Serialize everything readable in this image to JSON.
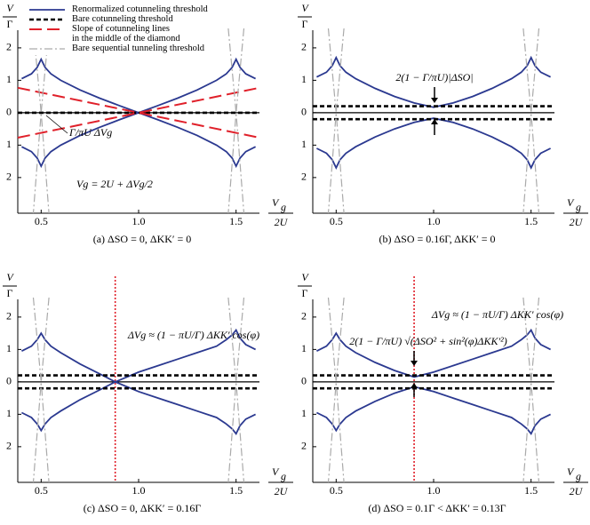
{
  "chart_data": [
    {
      "type": "line",
      "caption": "(a) ΔSO = 0, ΔKK′ = 0",
      "xlabel": {
        "num": "V",
        "sub": "g",
        "den": "2U"
      },
      "ylabel": {
        "num": "V",
        "den": "Γ"
      },
      "xlim": [
        0.38,
        1.62
      ],
      "ylim": [
        -3.1,
        2.6
      ],
      "xticks": [
        0.5,
        {
          "value": 1.0,
          "label": "1.0"
        },
        1.5
      ],
      "yticks": [
        2,
        1,
        0,
        {
          "value": -1,
          "label": "1"
        },
        {
          "value": -2,
          "label": "2"
        }
      ],
      "legend": "upper left",
      "x": [
        0.4,
        0.45,
        0.48,
        0.5,
        0.52,
        0.55,
        0.6,
        0.7,
        0.8,
        0.9,
        1.0,
        1.1,
        1.2,
        1.3,
        1.4,
        1.45,
        1.48,
        1.5,
        1.52,
        1.55,
        1.6
      ],
      "series": [
        {
          "name": "Renormalized cotunneling threshold",
          "color": "#2b3990",
          "style": "solid",
          "values": [
            1.05,
            1.2,
            1.4,
            1.65,
            1.4,
            1.2,
            1.0,
            0.7,
            0.45,
            0.22,
            0,
            0.22,
            0.45,
            0.7,
            1.0,
            1.2,
            1.4,
            1.65,
            1.4,
            1.2,
            1.05
          ]
        },
        {
          "color": "#2b3990",
          "style": "solid",
          "values": [
            -1.05,
            -1.2,
            -1.4,
            -1.65,
            -1.4,
            -1.2,
            -1.0,
            -0.7,
            -0.45,
            -0.22,
            0,
            -0.22,
            -0.45,
            -0.7,
            -1.0,
            -1.2,
            -1.4,
            -1.65,
            -1.4,
            -1.2,
            -1.05
          ]
        },
        {
          "name": "Bare cotunneling threshold",
          "color": "#000000",
          "style": "dashed",
          "x": [
            0.38,
            1.62
          ],
          "values": [
            0,
            0
          ]
        },
        {
          "name": "Slope of cotunneling lines\nin the middle of the diamond",
          "color": "#e0202a",
          "style": "longdash",
          "x": [
            0.38,
            1.62
          ],
          "values": [
            0.77,
            -0.77
          ]
        },
        {
          "color": "#e0202a",
          "style": "longdash",
          "x": [
            0.38,
            1.62
          ],
          "values": [
            -0.77,
            0.77
          ]
        },
        {
          "name": "Bare sequential tunneling threshold",
          "color": "#aaaaaa",
          "style": "dashdot",
          "x": [
            0.46,
            0.5,
            0.54
          ],
          "values": [
            2.6,
            0,
            -3.1
          ]
        },
        {
          "color": "#aaaaaa",
          "style": "dashdot",
          "x": [
            0.54,
            0.5,
            0.46
          ],
          "values": [
            2.6,
            0,
            -3.1
          ]
        },
        {
          "color": "#aaaaaa",
          "style": "dashdot",
          "x": [
            1.46,
            1.5,
            1.54
          ],
          "values": [
            2.6,
            0,
            -3.1
          ]
        },
        {
          "color": "#aaaaaa",
          "style": "dashdot",
          "x": [
            1.54,
            1.5,
            1.46
          ],
          "values": [
            2.6,
            0,
            -3.1
          ]
        }
      ],
      "annotations": [
        "Γ/πU ΔVg",
        "Vg = 2U + ΔVg/2"
      ]
    },
    {
      "type": "line",
      "caption": "(b) ΔSO = 0.16Γ, ΔKK′ = 0",
      "xlabel": {
        "num": "V",
        "sub": "g",
        "den": "2U"
      },
      "ylabel": {
        "num": "V",
        "den": "Γ"
      },
      "xlim": [
        0.38,
        1.62
      ],
      "ylim": [
        -3.1,
        2.6
      ],
      "xticks": [
        0.5,
        {
          "value": 1.0,
          "label": "1.0"
        },
        1.5
      ],
      "yticks": [
        2,
        1,
        0,
        {
          "value": -1,
          "label": "1"
        },
        {
          "value": -2,
          "label": "2"
        }
      ],
      "x": [
        0.4,
        0.45,
        0.48,
        0.5,
        0.52,
        0.55,
        0.6,
        0.7,
        0.8,
        0.9,
        1.0,
        1.1,
        1.2,
        1.3,
        1.4,
        1.45,
        1.48,
        1.5,
        1.52,
        1.55,
        1.6
      ],
      "series": [
        {
          "color": "#2b3990",
          "style": "solid",
          "values": [
            1.1,
            1.25,
            1.45,
            1.7,
            1.45,
            1.25,
            1.05,
            0.75,
            0.5,
            0.3,
            0.17,
            0.3,
            0.5,
            0.75,
            1.05,
            1.25,
            1.45,
            1.7,
            1.45,
            1.25,
            1.1
          ]
        },
        {
          "color": "#2b3990",
          "style": "solid",
          "values": [
            -1.1,
            -1.25,
            -1.45,
            -1.7,
            -1.45,
            -1.25,
            -1.05,
            -0.75,
            -0.5,
            -0.3,
            -0.17,
            -0.3,
            -0.5,
            -0.75,
            -1.05,
            -1.25,
            -1.45,
            -1.7,
            -1.45,
            -1.25,
            -1.1
          ]
        },
        {
          "color": "#000000",
          "style": "dashed",
          "x": [
            0.38,
            1.62
          ],
          "values": [
            0.2,
            0.2
          ]
        },
        {
          "color": "#000000",
          "style": "dashed",
          "x": [
            0.38,
            1.62
          ],
          "values": [
            -0.2,
            -0.2
          ]
        },
        {
          "color": "#aaaaaa",
          "style": "dashdot",
          "x": [
            0.46,
            0.5,
            0.54
          ],
          "values": [
            2.6,
            0,
            -3.1
          ]
        },
        {
          "color": "#aaaaaa",
          "style": "dashdot",
          "x": [
            0.54,
            0.5,
            0.46
          ],
          "values": [
            2.6,
            0,
            -3.1
          ]
        },
        {
          "color": "#aaaaaa",
          "style": "dashdot",
          "x": [
            1.46,
            1.5,
            1.54
          ],
          "values": [
            2.6,
            0,
            -3.1
          ]
        },
        {
          "color": "#aaaaaa",
          "style": "dashdot",
          "x": [
            1.54,
            1.5,
            1.46
          ],
          "values": [
            2.6,
            0,
            -3.1
          ]
        }
      ],
      "annotations": [
        "2(1 − Γ/πU)|ΔSO|"
      ]
    },
    {
      "type": "line",
      "caption": "(c) ΔSO = 0, ΔKK′ = 0.16Γ",
      "xlabel": {
        "num": "V",
        "sub": "g",
        "den": "2U"
      },
      "ylabel": {
        "num": "V",
        "den": "Γ"
      },
      "xlim": [
        0.38,
        1.62
      ],
      "ylim": [
        -3.1,
        2.6
      ],
      "xticks": [
        0.5,
        {
          "value": 1.0,
          "label": "1.0"
        },
        1.5
      ],
      "yticks": [
        2,
        1,
        0,
        {
          "value": -1,
          "label": "1"
        },
        {
          "value": -2,
          "label": "2"
        }
      ],
      "vline": {
        "x": 0.88,
        "color": "#e0202a"
      },
      "x": [
        0.4,
        0.45,
        0.48,
        0.5,
        0.52,
        0.55,
        0.6,
        0.7,
        0.8,
        0.88,
        1.0,
        1.1,
        1.2,
        1.3,
        1.4,
        1.45,
        1.48,
        1.5,
        1.52,
        1.55,
        1.6
      ],
      "series": [
        {
          "color": "#2b3990",
          "style": "solid",
          "values": [
            0.95,
            1.1,
            1.3,
            1.5,
            1.3,
            1.1,
            0.9,
            0.55,
            0.25,
            0,
            0.3,
            0.5,
            0.7,
            0.9,
            1.1,
            1.3,
            1.45,
            1.6,
            1.35,
            1.15,
            1.0
          ]
        },
        {
          "color": "#2b3990",
          "style": "solid",
          "values": [
            -0.95,
            -1.1,
            -1.3,
            -1.5,
            -1.3,
            -1.1,
            -0.9,
            -0.55,
            -0.25,
            0,
            -0.3,
            -0.5,
            -0.7,
            -0.9,
            -1.1,
            -1.3,
            -1.45,
            -1.6,
            -1.35,
            -1.15,
            -1.0
          ]
        },
        {
          "color": "#000000",
          "style": "dashed",
          "x": [
            0.38,
            1.62
          ],
          "values": [
            0.2,
            0.2
          ]
        },
        {
          "color": "#000000",
          "style": "dashed",
          "x": [
            0.38,
            1.62
          ],
          "values": [
            -0.2,
            -0.2
          ]
        },
        {
          "color": "#aaaaaa",
          "style": "dashdot",
          "x": [
            0.46,
            0.5,
            0.54
          ],
          "values": [
            2.6,
            0,
            -3.1
          ]
        },
        {
          "color": "#aaaaaa",
          "style": "dashdot",
          "x": [
            0.54,
            0.5,
            0.46
          ],
          "values": [
            2.6,
            0,
            -3.1
          ]
        },
        {
          "color": "#aaaaaa",
          "style": "dashdot",
          "x": [
            1.46,
            1.5,
            1.54
          ],
          "values": [
            2.6,
            0,
            -3.1
          ]
        },
        {
          "color": "#aaaaaa",
          "style": "dashdot",
          "x": [
            1.54,
            1.5,
            1.46
          ],
          "values": [
            2.6,
            0,
            -3.1
          ]
        }
      ],
      "annotations": [
        "ΔVg ≈ (1 − πU/Γ) ΔKK′ cos(φ)"
      ]
    },
    {
      "type": "line",
      "caption": "(d) ΔSO = 0.1Γ < ΔKK′ = 0.13Γ",
      "xlabel": {
        "num": "V",
        "sub": "g",
        "den": "2U"
      },
      "ylabel": {
        "num": "V",
        "den": "Γ"
      },
      "xlim": [
        0.38,
        1.62
      ],
      "ylim": [
        -3.1,
        2.6
      ],
      "xticks": [
        0.5,
        {
          "value": 1.0,
          "label": "1.0"
        },
        1.5
      ],
      "yticks": [
        2,
        1,
        0,
        {
          "value": -1,
          "label": "1"
        },
        {
          "value": -2,
          "label": "2"
        }
      ],
      "vline": {
        "x": 0.9,
        "color": "#e0202a"
      },
      "x": [
        0.4,
        0.45,
        0.48,
        0.5,
        0.52,
        0.55,
        0.6,
        0.7,
        0.8,
        0.9,
        1.0,
        1.1,
        1.2,
        1.3,
        1.4,
        1.45,
        1.48,
        1.5,
        1.52,
        1.55,
        1.6
      ],
      "series": [
        {
          "color": "#2b3990",
          "style": "solid",
          "values": [
            0.95,
            1.1,
            1.3,
            1.5,
            1.3,
            1.1,
            0.9,
            0.6,
            0.35,
            0.15,
            0.3,
            0.5,
            0.7,
            0.9,
            1.1,
            1.3,
            1.45,
            1.6,
            1.35,
            1.15,
            1.0
          ]
        },
        {
          "color": "#2b3990",
          "style": "solid",
          "values": [
            -0.95,
            -1.1,
            -1.3,
            -1.5,
            -1.3,
            -1.1,
            -0.9,
            -0.6,
            -0.35,
            -0.15,
            -0.3,
            -0.5,
            -0.7,
            -0.9,
            -1.1,
            -1.3,
            -1.45,
            -1.6,
            -1.35,
            -1.15,
            -1.0
          ]
        },
        {
          "color": "#000000",
          "style": "dashed",
          "x": [
            0.38,
            1.62
          ],
          "values": [
            0.2,
            0.2
          ]
        },
        {
          "color": "#000000",
          "style": "dashed",
          "x": [
            0.38,
            1.62
          ],
          "values": [
            -0.2,
            -0.2
          ]
        },
        {
          "color": "#aaaaaa",
          "style": "dashdot",
          "x": [
            0.46,
            0.5,
            0.54
          ],
          "values": [
            2.6,
            0,
            -3.1
          ]
        },
        {
          "color": "#aaaaaa",
          "style": "dashdot",
          "x": [
            0.54,
            0.5,
            0.46
          ],
          "values": [
            2.6,
            0,
            -3.1
          ]
        },
        {
          "color": "#aaaaaa",
          "style": "dashdot",
          "x": [
            1.46,
            1.5,
            1.54
          ],
          "values": [
            2.6,
            0,
            -3.1
          ]
        },
        {
          "color": "#aaaaaa",
          "style": "dashdot",
          "x": [
            1.54,
            1.5,
            1.46
          ],
          "values": [
            2.6,
            0,
            -3.1
          ]
        }
      ],
      "annotations": [
        "ΔVg ≈ (1 − πU/Γ) ΔKK′ cos(φ)",
        "2(1 − Γ/πU) √(ΔSO² + sin²(φ)ΔKK′²)"
      ]
    }
  ]
}
